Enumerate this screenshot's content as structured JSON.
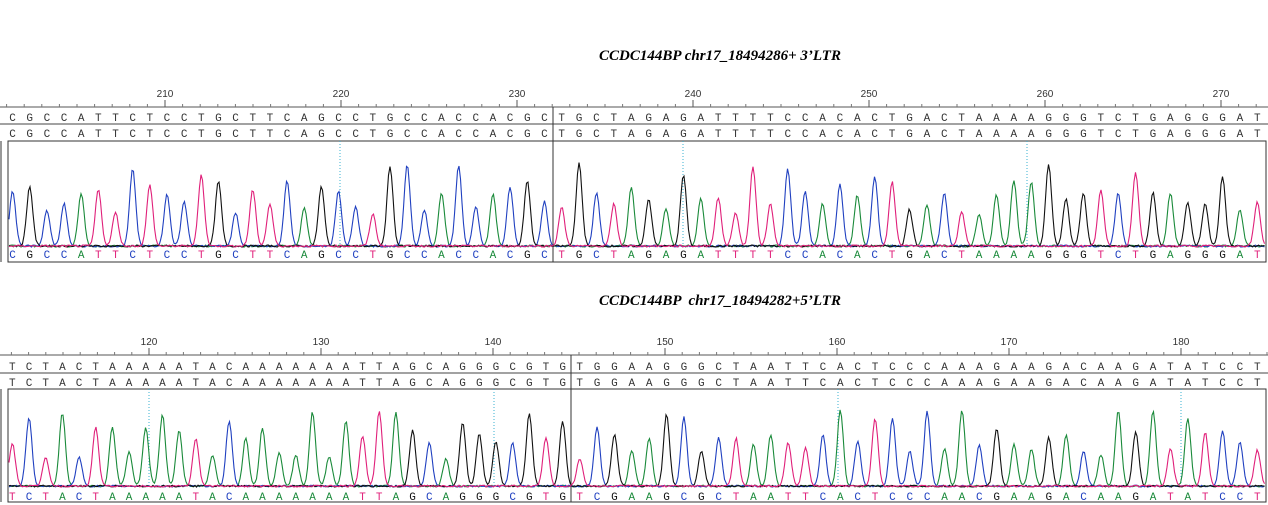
{
  "panels": [
    {
      "title": "CCDC144BP chr17_18494286+ 3’LTR",
      "ruler": [
        210,
        220,
        230,
        240,
        250,
        260,
        270
      ],
      "rows": [
        [
          "CGCCATTCTCCTGCTTCAGCCTGCCACCACGC",
          "TGCTAGAGATTTTCCACACTGACTAAAAGGGTCTGAGGGAT"
        ],
        [
          "CGCCATTCTCCTGCTTCAGCCTGCCACCACGC",
          "TGCTAGAGATTTTCCACACTGACTAAAAGGGTCTGAGGGAT"
        ],
        [
          "CGCCATTCTCCTGCTTCAGCCTGCCACCACGC",
          "TGCTAGAGATTTTCCACACTGACTAAAAGGGTCTGAGGGAT"
        ]
      ]
    },
    {
      "title": "CCDC144BP  chr17_18494282+5’LTR",
      "ruler": [
        120,
        130,
        140,
        150,
        160,
        170,
        180
      ],
      "rows": [
        [
          "TCTACTAAAAATACAAAAAAATTAGCAGGGCGTG",
          "TGGAAGGGCTAATTCACTCCCAAAGAAGACAAGATATCCT"
        ],
        [
          "TCTACTAAAAATACAAAAAAATTAGCAGGGCGTG",
          "TGGAAGGGCTAATTCACTCCCAAAGAAGACAAGATATCCT"
        ],
        [
          "TCTACTAAAAATACAAAAAAATTAGCAGGGCGTG",
          "TCGAAGCGCTAATTCACTCCCAACGAAGACAAGATATCCT"
        ]
      ]
    }
  ]
}
